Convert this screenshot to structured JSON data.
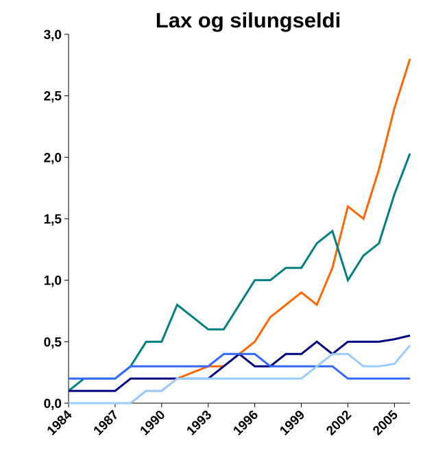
{
  "chart_data": {
    "type": "line",
    "title": "Lax og silungseldi",
    "x": [
      1984,
      1985,
      1986,
      1987,
      1988,
      1989,
      1990,
      1991,
      1992,
      1993,
      1994,
      1995,
      1996,
      1997,
      1998,
      1999,
      2000,
      2001,
      2002,
      2003,
      2004,
      2005,
      2006
    ],
    "series": [
      {
        "color": "#ff6600",
        "values": [
          0,
          0,
          0,
          0,
          0,
          0.1,
          0.1,
          0.2,
          0.25,
          0.3,
          0.3,
          0.4,
          0.5,
          0.7,
          0.8,
          0.9,
          0.8,
          1.1,
          1.6,
          1.5,
          1.9,
          2.4,
          2.8
        ]
      },
      {
        "color": "#008080",
        "values": [
          0.1,
          0.2,
          0.2,
          0.2,
          0.3,
          0.5,
          0.5,
          0.8,
          0.7,
          0.6,
          0.6,
          0.8,
          1.0,
          1.0,
          1.1,
          1.1,
          1.3,
          1.4,
          1.0,
          1.2,
          1.3,
          1.7,
          2.03
        ]
      },
      {
        "color": "#000080",
        "values": [
          0.1,
          0.1,
          0.1,
          0.1,
          0.2,
          0.2,
          0.2,
          0.2,
          0.2,
          0.2,
          0.3,
          0.4,
          0.3,
          0.3,
          0.4,
          0.4,
          0.5,
          0.4,
          0.5,
          0.5,
          0.5,
          0.52,
          0.55
        ]
      },
      {
        "color": "#3366ff",
        "values": [
          0.2,
          0.2,
          0.2,
          0.2,
          0.3,
          0.3,
          0.3,
          0.3,
          0.3,
          0.3,
          0.4,
          0.4,
          0.4,
          0.3,
          0.3,
          0.3,
          0.3,
          0.3,
          0.2,
          0.2,
          0.2,
          0.2,
          0.2
        ]
      },
      {
        "color": "#99ccff",
        "values": [
          0,
          0,
          0,
          0,
          0,
          0.1,
          0.1,
          0.2,
          0.2,
          0.2,
          0.2,
          0.2,
          0.2,
          0.2,
          0.2,
          0.2,
          0.3,
          0.4,
          0.4,
          0.3,
          0.3,
          0.32,
          0.47
        ]
      }
    ],
    "xlim": [
      1984,
      2006
    ],
    "xticks": [
      1984,
      1987,
      1990,
      1993,
      1996,
      1999,
      2002,
      2005
    ],
    "ylim": [
      0,
      3
    ],
    "yticks": [
      {
        "value": 0,
        "label": "0,0"
      },
      {
        "value": 0.5,
        "label": "0,5"
      },
      {
        "value": 1,
        "label": "1,0"
      },
      {
        "value": 1.5,
        "label": "1,5"
      },
      {
        "value": 2,
        "label": "2,0"
      },
      {
        "value": 2.5,
        "label": "2,5"
      },
      {
        "value": 3,
        "label": "3,0"
      }
    ],
    "grid": false
  }
}
